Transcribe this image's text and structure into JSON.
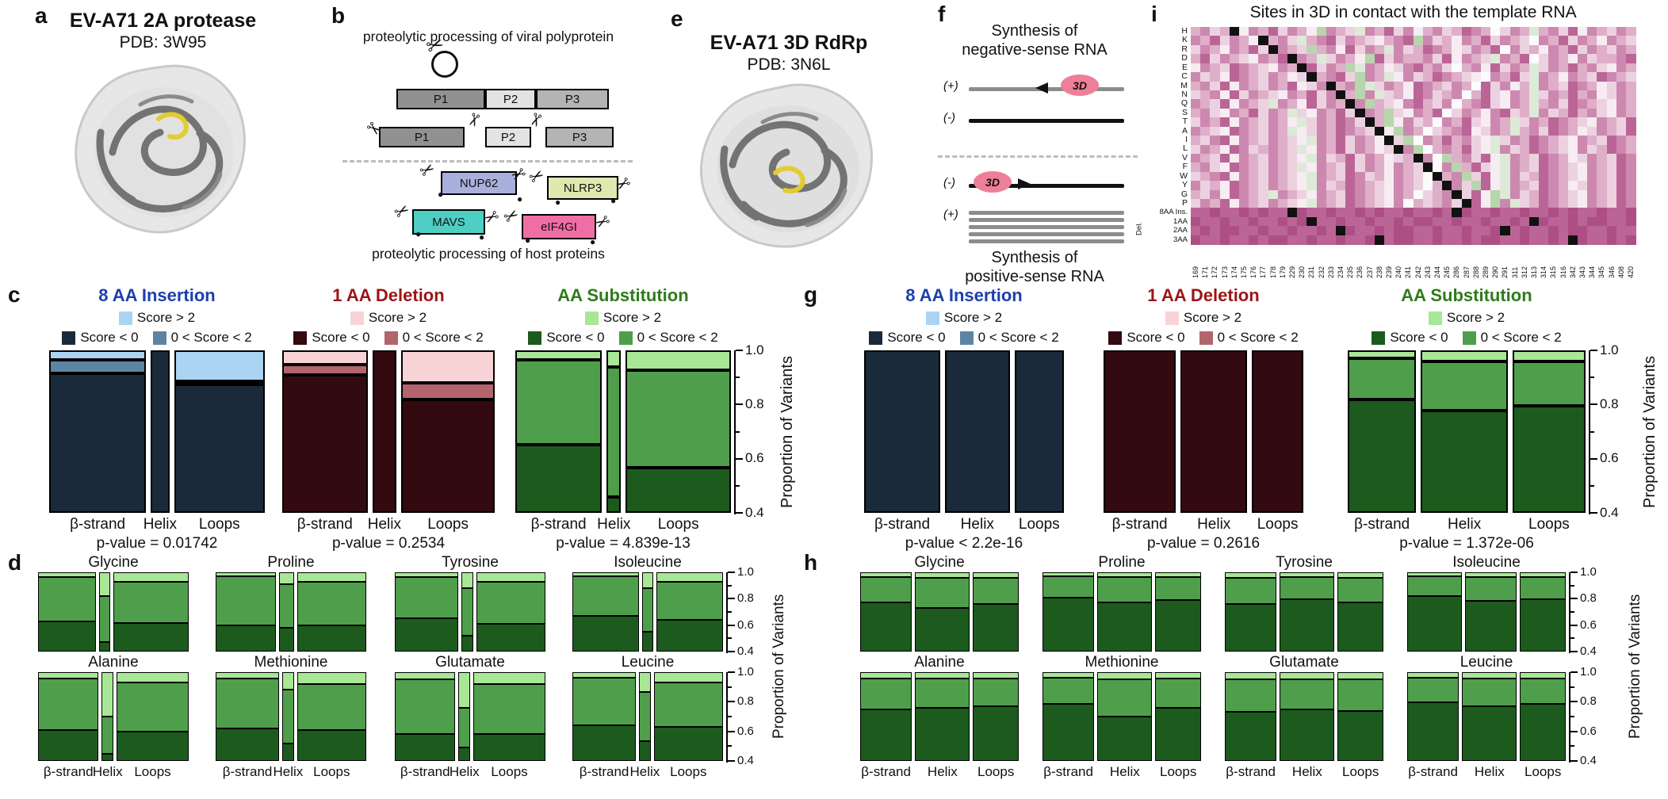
{
  "letters": {
    "a": "a",
    "b": "b",
    "c": "c",
    "d": "d",
    "e": "e",
    "f": "f",
    "g": "g",
    "h": "h",
    "i": "i"
  },
  "icons": {
    "scissors": "✂",
    "dot": "●"
  },
  "axis": {
    "label": "Proportion of Variants",
    "major_ticks": [
      "1.0",
      "0.8",
      "0.6",
      "0.4"
    ]
  },
  "panel_a": {
    "title": "EV-A71 2A protease",
    "subtitle": "PDB: 3W95"
  },
  "panel_b": {
    "top_text": "proteolytic processing of viral polyprotein",
    "bottom_text": "proteolytic processing of host proteins",
    "polyprotein_row1": [
      "P1",
      "P2",
      "P3"
    ],
    "polyprotein_row2": [
      "P1",
      "P2",
      "P3"
    ],
    "host_proteins": [
      {
        "label": "NUP62",
        "color": "#a9b0dc"
      },
      {
        "label": "NLRP3",
        "color": "#e0e7af"
      },
      {
        "label": "MAVS",
        "color": "#4fcfc4"
      },
      {
        "label": "eIF4GI",
        "color": "#f06ea6"
      }
    ]
  },
  "panel_e": {
    "title": "EV-A71 3D RdRp",
    "subtitle": "PDB: 3N6L"
  },
  "panel_f": {
    "neg_caption_line1": "Synthesis of",
    "neg_caption_line2": "negative-sense RNA",
    "pos_caption_line1": "Synthesis of",
    "pos_caption_line2": "positive-sense RNA",
    "plus_label": "(+)",
    "minus_label": "(-)",
    "polymerase_label": "3D"
  },
  "chart_data": [
    {
      "id": "c",
      "type": "mosaic-group",
      "protein": "EV-A71 2A protease",
      "ylabel": "Proportion of Variants",
      "ylim": [
        0.4,
        1.0
      ],
      "yticks": [
        1.0,
        0.8,
        0.6,
        0.4
      ],
      "plots": [
        {
          "title": "8 AA Insertion",
          "title_color": "#1c3fae",
          "palette": {
            "dark": "#1b2a3a",
            "mid": "#5e84a3",
            "light": "#aad4f2"
          },
          "legend": {
            "light": "Score > 2",
            "dark": "Score < 0",
            "mid": "0 < Score < 2"
          },
          "categories": [
            "β-strand",
            "Helix",
            "Loops"
          ],
          "col_widths": [
            0.47,
            0.09,
            0.44
          ],
          "segments": [
            [
              0.86,
              0.08,
              0.06
            ],
            [
              1,
              0,
              0
            ],
            [
              0.79,
              0.02,
              0.19
            ]
          ],
          "p_value": "p-value = 0.01742"
        },
        {
          "title": "1 AA Deletion",
          "title_color": "#9c1515",
          "palette": {
            "dark": "#330a10",
            "mid": "#b2656c",
            "light": "#f8d3d6"
          },
          "legend": {
            "light": "Score > 2",
            "dark": "Score < 0",
            "mid": "0 < Score < 2"
          },
          "categories": [
            "β-strand",
            "Helix",
            "Loops"
          ],
          "col_widths": [
            0.42,
            0.12,
            0.46
          ],
          "segments": [
            [
              0.85,
              0.06,
              0.09
            ],
            [
              1,
              0,
              0
            ],
            [
              0.7,
              0.1,
              0.2
            ]
          ],
          "p_value": "p-value = 0.2534"
        },
        {
          "title": "AA Substitution",
          "title_color": "#2f7a1d",
          "palette": {
            "dark": "#1d5a1e",
            "mid": "#4f9e4b",
            "light": "#a7e795"
          },
          "legend": {
            "light": "Score > 2",
            "dark": "Score < 0",
            "mid": "0 < Score < 2"
          },
          "categories": [
            "β-strand",
            "Helix",
            "Loops"
          ],
          "col_widths": [
            0.42,
            0.07,
            0.51
          ],
          "segments": [
            [
              0.42,
              0.52,
              0.06
            ],
            [
              0.1,
              0.8,
              0.1
            ],
            [
              0.28,
              0.6,
              0.12
            ]
          ],
          "p_value": "p-value = 4.839e-13"
        }
      ]
    },
    {
      "id": "g",
      "type": "mosaic-group",
      "protein": "EV-A71 3D RdRp",
      "ylabel": "Proportion of Variants",
      "ylim": [
        0.4,
        1.0
      ],
      "yticks": [
        1.0,
        0.8,
        0.6,
        0.4
      ],
      "plots": [
        {
          "title": "8 AA Insertion",
          "title_color": "#1c3fae",
          "palette": {
            "dark": "#1b2a3a",
            "mid": "#5e84a3",
            "light": "#aad4f2"
          },
          "legend": {
            "light": "Score > 2",
            "dark": "Score < 0",
            "mid": "0 < Score < 2"
          },
          "categories": [
            "β-strand",
            "Helix",
            "Loops"
          ],
          "col_widths": [
            0.4,
            0.34,
            0.26
          ],
          "segments": [
            [
              1,
              0,
              0
            ],
            [
              1,
              0,
              0
            ],
            [
              1,
              0,
              0
            ]
          ],
          "p_value": "p-value < 2.2e-16"
        },
        {
          "title": "1 AA Deletion",
          "title_color": "#9c1515",
          "palette": {
            "dark": "#330a10",
            "mid": "#b2656c",
            "light": "#f8d3d6"
          },
          "legend": {
            "light": "Score > 2",
            "dark": "Score < 0",
            "mid": "0 < Score < 2"
          },
          "categories": [
            "β-strand",
            "Helix",
            "Loops"
          ],
          "col_widths": [
            0.38,
            0.35,
            0.27
          ],
          "segments": [
            [
              1,
              0,
              0
            ],
            [
              1,
              0,
              0
            ],
            [
              1,
              0,
              0
            ]
          ],
          "p_value": "p-value = 0.2616"
        },
        {
          "title": "AA Substitution",
          "title_color": "#2f7a1d",
          "palette": {
            "dark": "#1d5a1e",
            "mid": "#4f9e4b",
            "light": "#a7e795"
          },
          "legend": {
            "light": "Score > 2",
            "dark": "Score < 0",
            "mid": "0 < Score < 2"
          },
          "categories": [
            "β-strand",
            "Helix",
            "Loops"
          ],
          "col_widths": [
            0.3,
            0.38,
            0.32
          ],
          "segments": [
            [
              0.7,
              0.25,
              0.05
            ],
            [
              0.63,
              0.3,
              0.07
            ],
            [
              0.66,
              0.27,
              0.07
            ]
          ],
          "p_value": "p-value = 1.372e-06"
        }
      ]
    },
    {
      "id": "d",
      "type": "mosaic-mini-grid",
      "protein": "EV-A71 2A protease",
      "ylabel": "Proportion of Variants",
      "ylim": [
        0.4,
        1.0
      ],
      "yticks": [
        1.0,
        0.8,
        0.6,
        0.4
      ],
      "categories": [
        "β-strand",
        "Helix",
        "Loops"
      ],
      "palette": {
        "dark": "#1d5a1e",
        "mid": "#4f9e4b",
        "light": "#a7e795"
      },
      "minis": [
        {
          "title": "Glycine",
          "col_widths": [
            0.4,
            0.08,
            0.52
          ],
          "segments": [
            [
              0.38,
              0.56,
              0.06
            ],
            [
              0.12,
              0.58,
              0.3
            ],
            [
              0.36,
              0.52,
              0.12
            ]
          ]
        },
        {
          "title": "Proline",
          "col_widths": [
            0.42,
            0.1,
            0.48
          ],
          "segments": [
            [
              0.33,
              0.62,
              0.05
            ],
            [
              0.3,
              0.55,
              0.15
            ],
            [
              0.33,
              0.55,
              0.12
            ]
          ]
        },
        {
          "title": "Tyrosine",
          "col_widths": [
            0.44,
            0.08,
            0.48
          ],
          "segments": [
            [
              0.42,
              0.52,
              0.06
            ],
            [
              0.2,
              0.6,
              0.2
            ],
            [
              0.35,
              0.53,
              0.12
            ]
          ]
        },
        {
          "title": "Isoleucine",
          "col_widths": [
            0.46,
            0.08,
            0.46
          ],
          "segments": [
            [
              0.45,
              0.5,
              0.05
            ],
            [
              0.25,
              0.55,
              0.2
            ],
            [
              0.4,
              0.48,
              0.12
            ]
          ]
        },
        {
          "title": "Alanine",
          "col_widths": [
            0.42,
            0.08,
            0.5
          ],
          "segments": [
            [
              0.35,
              0.58,
              0.07
            ],
            [
              0.08,
              0.42,
              0.5
            ],
            [
              0.33,
              0.55,
              0.12
            ]
          ]
        },
        {
          "title": "Methionine",
          "col_widths": [
            0.44,
            0.08,
            0.48
          ],
          "segments": [
            [
              0.37,
              0.56,
              0.07
            ],
            [
              0.2,
              0.6,
              0.2
            ],
            [
              0.35,
              0.52,
              0.13
            ]
          ]
        },
        {
          "title": "Glutamate",
          "col_widths": [
            0.42,
            0.08,
            0.5
          ],
          "segments": [
            [
              0.3,
              0.62,
              0.08
            ],
            [
              0.15,
              0.45,
              0.4
            ],
            [
              0.3,
              0.57,
              0.13
            ]
          ]
        },
        {
          "title": "Leucine",
          "col_widths": [
            0.44,
            0.08,
            0.48
          ],
          "segments": [
            [
              0.4,
              0.54,
              0.06
            ],
            [
              0.22,
              0.56,
              0.22
            ],
            [
              0.38,
              0.5,
              0.12
            ]
          ]
        }
      ]
    },
    {
      "id": "h",
      "type": "mosaic-mini-grid",
      "protein": "EV-A71 3D RdRp",
      "ylabel": "Proportion of Variants",
      "ylim": [
        0.4,
        1.0
      ],
      "yticks": [
        1.0,
        0.8,
        0.6,
        0.4
      ],
      "categories": [
        "β-strand",
        "Helix",
        "Loops"
      ],
      "palette": {
        "dark": "#1d5a1e",
        "mid": "#4f9e4b",
        "light": "#a7e795"
      },
      "minis": [
        {
          "title": "Glycine",
          "col_widths": [
            0.34,
            0.36,
            0.3
          ],
          "segments": [
            [
              0.62,
              0.32,
              0.06
            ],
            [
              0.55,
              0.38,
              0.07
            ],
            [
              0.6,
              0.33,
              0.07
            ]
          ]
        },
        {
          "title": "Proline",
          "col_widths": [
            0.34,
            0.36,
            0.3
          ],
          "segments": [
            [
              0.68,
              0.27,
              0.05
            ],
            [
              0.62,
              0.32,
              0.06
            ],
            [
              0.65,
              0.29,
              0.06
            ]
          ]
        },
        {
          "title": "Tyrosine",
          "col_widths": [
            0.34,
            0.36,
            0.3
          ],
          "segments": [
            [
              0.6,
              0.33,
              0.07
            ],
            [
              0.66,
              0.28,
              0.06
            ],
            [
              0.62,
              0.31,
              0.07
            ]
          ]
        },
        {
          "title": "Isoleucine",
          "col_widths": [
            0.36,
            0.34,
            0.3
          ],
          "segments": [
            [
              0.7,
              0.25,
              0.05
            ],
            [
              0.64,
              0.3,
              0.06
            ],
            [
              0.66,
              0.28,
              0.06
            ]
          ]
        },
        {
          "title": "Alanine",
          "col_widths": [
            0.34,
            0.36,
            0.3
          ],
          "segments": [
            [
              0.58,
              0.35,
              0.07
            ],
            [
              0.6,
              0.33,
              0.07
            ],
            [
              0.62,
              0.31,
              0.07
            ]
          ]
        },
        {
          "title": "Methionine",
          "col_widths": [
            0.34,
            0.36,
            0.3
          ],
          "segments": [
            [
              0.64,
              0.3,
              0.06
            ],
            [
              0.5,
              0.42,
              0.08
            ],
            [
              0.6,
              0.33,
              0.07
            ]
          ]
        },
        {
          "title": "Glutamate",
          "col_widths": [
            0.34,
            0.36,
            0.3
          ],
          "segments": [
            [
              0.55,
              0.37,
              0.08
            ],
            [
              0.58,
              0.34,
              0.08
            ],
            [
              0.56,
              0.36,
              0.08
            ]
          ]
        },
        {
          "title": "Leucine",
          "col_widths": [
            0.34,
            0.36,
            0.3
          ],
          "segments": [
            [
              0.66,
              0.28,
              0.06
            ],
            [
              0.62,
              0.31,
              0.07
            ],
            [
              0.64,
              0.29,
              0.07
            ]
          ]
        }
      ]
    },
    {
      "id": "i",
      "type": "heatmap",
      "title": "Sites in 3D in contact with the template RNA",
      "row_labels": [
        "H",
        "K",
        "R",
        "D",
        "E",
        "C",
        "M",
        "N",
        "Q",
        "S",
        "T",
        "A",
        "I",
        "L",
        "V",
        "F",
        "W",
        "Y",
        "G",
        "P"
      ],
      "ins_row_label": "8AA Ins.",
      "del_group_label": "Del.",
      "del_row_labels": [
        "1AA",
        "2AA",
        "3AA"
      ],
      "col_labels": [
        169,
        171,
        172,
        173,
        174,
        175,
        176,
        177,
        178,
        179,
        229,
        230,
        231,
        232,
        233,
        234,
        235,
        236,
        237,
        238,
        239,
        240,
        241,
        242,
        243,
        244,
        245,
        286,
        287,
        288,
        289,
        290,
        291,
        311,
        312,
        313,
        314,
        315,
        316,
        342,
        343,
        344,
        345,
        346,
        408,
        420
      ],
      "palette": {
        "a": "#f6ecf2",
        "b": "#ecd2e0",
        "c": "#dfaec9",
        "d": "#cd88b0",
        "e": "#bb6597",
        "f": "#ad4f85",
        "w": "#fbfbfb",
        "g": "#dcead7",
        "h": "#b7d6ad",
        "B": "#111111"
      },
      "rows": [
        "cdbcBadcebdcahdcbgdcebdacdbcedcwbdcgcdbeadcbdc",
        "dcebdcaBcdbgcdebdcbacdehdbcadcebdcbwdcebdcadcb",
        "bdcadcebBdcbhcdaebdcgdbcedcabdcewdbcadcebdcbdc",
        "cebdcbadceBdcgbdcahebdccdbeadcbgdcewbdcadbccde",
        "adcbedcbadcBebdchgdcabdecdbwcdaebdcgbdcecdbadc",
        "dbcaedcbdcabBcdebhdcgadbcedcbawdcebgdcadcbedcb",
        "cdbeadcbdceabdBcdhgbdcaedcbdcwebdacgdcbedcabdc",
        "bcdaebdcbadcebdBchdgbcaedbcdwcebadcgbdcecdabdc",
        "dcbeadcbgdcaebdcBdhcbadecbdwcdebadcgcdbedcbadc",
        "cdbadcebdcgbadcebBdchbadcewbdcadebcgdbcecdbadc",
        "bdceadcbdcagbdcedbBchadbcwdcebadcgbdcedcbadcbe",
        "dcbaedcbdcgabdcedcbBahdcwbcdeabdcgcdbedcabdcbe",
        "cbdeadcbdcbagdcebdcaBbhwdcecdbagbdcedcbadcbedc",
        "bdcaedbcdcbgadcebdcabBdhwcdcebagdbcedcbadbcedc",
        "dcbeadcbdcbagdbcebdcabcBdwhcdbeagdcbedcabdcbed",
        "cdbaedcbdcbgadcbebdcadcbBwdhcebagdcbedcbadcbed",
        "bcdeadcbdcbagdcbedbcadcbwBcdhbeagdbcedcbadcbed",
        "dbcaedcbdcbagdbcedcbadcbwcBdbheagdcbedcabdcbed",
        "cbdaedcbgdcbadcbedcbadcwbcdBbeahgdbcedcbadcbed",
        "bdceadcbdcbagdcbedcbadwcbcdbBeahdgbcedcbadcbed",
        "eefeefefeeBfeefeefefeefeefeBfeefeefeefefeefeef",
        "feefeefeefefBeefeefeefeffeefeefeefeBfeefeffeef",
        "efeffeefeefeefeBfeefeffeefeefeefBefeefeffeefee",
        "feefeefeffeefeefeefBeffeefeefeffeefeefeBfeefef"
      ]
    }
  ]
}
